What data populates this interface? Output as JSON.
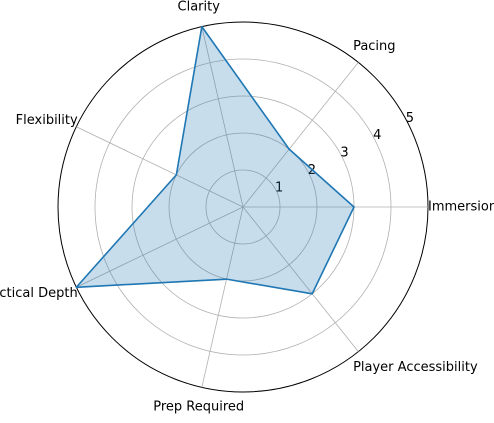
{
  "chart_data": {
    "type": "radar",
    "categories": [
      "Immersion",
      "Pacing",
      "Clarity",
      "Flexibility",
      "Tactical Depth",
      "Prep Required",
      "Player Accessibility"
    ],
    "values": [
      3,
      2,
      5,
      2,
      5,
      2,
      3
    ],
    "color": "#1f77b4",
    "ylim": [
      0,
      5
    ],
    "yticks": [
      1,
      2,
      3,
      4,
      5
    ],
    "grid": true
  }
}
